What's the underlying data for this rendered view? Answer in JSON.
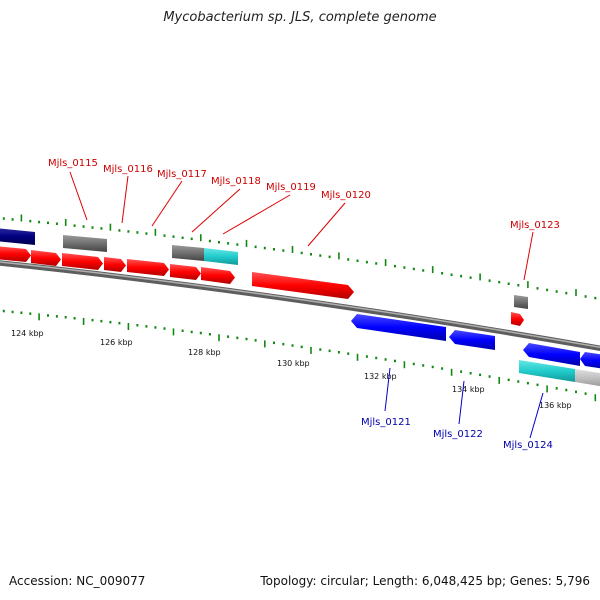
{
  "title": "Mycobacterium sp. JLS, complete genome",
  "footer": {
    "accession": "Accession: NC_009077",
    "summary": "Topology: circular; Length: 6,048,425 bp; Genes: 5,796"
  },
  "colors": {
    "forward_cds": "#ff0000",
    "reverse_cds": "#0000ff",
    "navy_feature": "#000080",
    "gray_feature": "#707070",
    "cyan_feature": "#22cccc",
    "lightgray_feature": "#c0c0c0",
    "tick_marks": "#118811",
    "backbone": "#7a7a7a",
    "forward_label": "#cc0000",
    "reverse_label": "#0000aa"
  },
  "scale": {
    "tick_labels": [
      "124 kbp",
      "126 kbp",
      "128 kbp",
      "130 kbp",
      "132 kbp",
      "134 kbp",
      "136 kbp"
    ]
  },
  "genes": {
    "forward_labels": [
      "Mjls_0115",
      "Mjls_0116",
      "Mjls_0117",
      "Mjls_0118",
      "Mjls_0119",
      "Mjls_0120",
      "Mjls_0123"
    ],
    "reverse_labels": [
      "Mjls_0121",
      "Mjls_0122",
      "Mjls_0124"
    ]
  }
}
